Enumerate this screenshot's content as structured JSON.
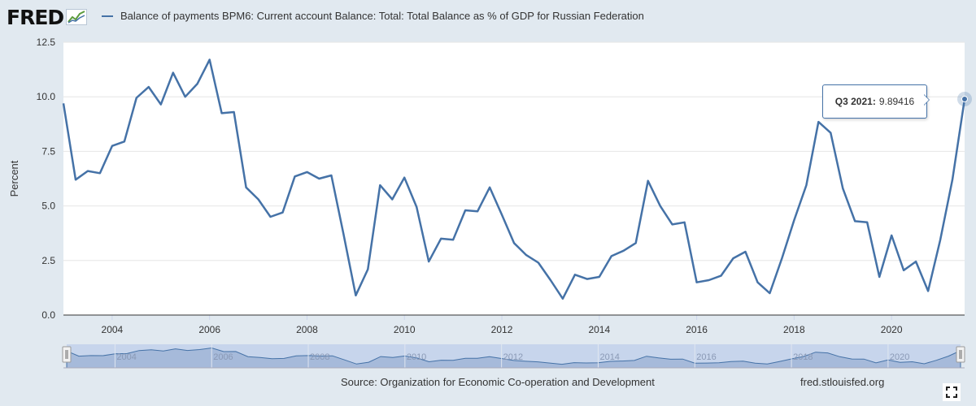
{
  "header": {
    "logo_text": "FRED",
    "legend_label": "Balance of payments BPM6: Current account Balance: Total: Total Balance as % of GDP for Russian Federation"
  },
  "colors": {
    "series": "#4572a7",
    "background": "#e1e9f0",
    "navigator_fill": "#c7d5ec",
    "logo_green": "#5b9b3c"
  },
  "chart_data": {
    "type": "line",
    "title": "Balance of payments BPM6: Current account Balance: Total: Total Balance as % of GDP for Russian Federation",
    "xlabel": "",
    "ylabel": "Percent",
    "xlim": [
      2003.0,
      2021.5
    ],
    "ylim": [
      0,
      12.5
    ],
    "y_ticks": [
      "0.0",
      "2.5",
      "5.0",
      "7.5",
      "10.0",
      "12.5"
    ],
    "x_ticks": [
      "2004",
      "2006",
      "2008",
      "2010",
      "2012",
      "2014",
      "2016",
      "2018",
      "2020"
    ],
    "grid": true,
    "series": [
      {
        "name": "Current account Balance as % of GDP, Russian Federation",
        "frequency": "quarterly",
        "start": "2003-Q1",
        "values": [
          9.7,
          6.2,
          6.6,
          6.5,
          7.75,
          7.95,
          9.95,
          10.45,
          9.65,
          11.1,
          10.0,
          10.6,
          11.7,
          9.25,
          9.3,
          5.85,
          5.3,
          4.5,
          4.7,
          6.35,
          6.55,
          6.25,
          6.4,
          3.7,
          0.9,
          2.1,
          5.95,
          5.3,
          6.3,
          4.95,
          2.45,
          3.5,
          3.45,
          4.8,
          4.75,
          5.85,
          4.6,
          3.3,
          2.75,
          2.4,
          1.6,
          0.75,
          1.85,
          1.65,
          1.75,
          2.7,
          2.95,
          3.3,
          6.15,
          5.0,
          4.15,
          4.25,
          1.5,
          1.6,
          1.8,
          2.6,
          2.9,
          1.5,
          1.0,
          2.6,
          4.35,
          5.95,
          8.85,
          8.35,
          5.8,
          4.3,
          4.25,
          1.75,
          3.65,
          2.05,
          2.45,
          1.1,
          3.45,
          6.2,
          9.89416
        ]
      }
    ],
    "tooltip": {
      "label": "Q3 2021:",
      "value": "9.89416"
    }
  },
  "footer": {
    "source": "Source: Organization for Economic Co-operation and Development",
    "credit": "fred.stlouisfed.org"
  }
}
